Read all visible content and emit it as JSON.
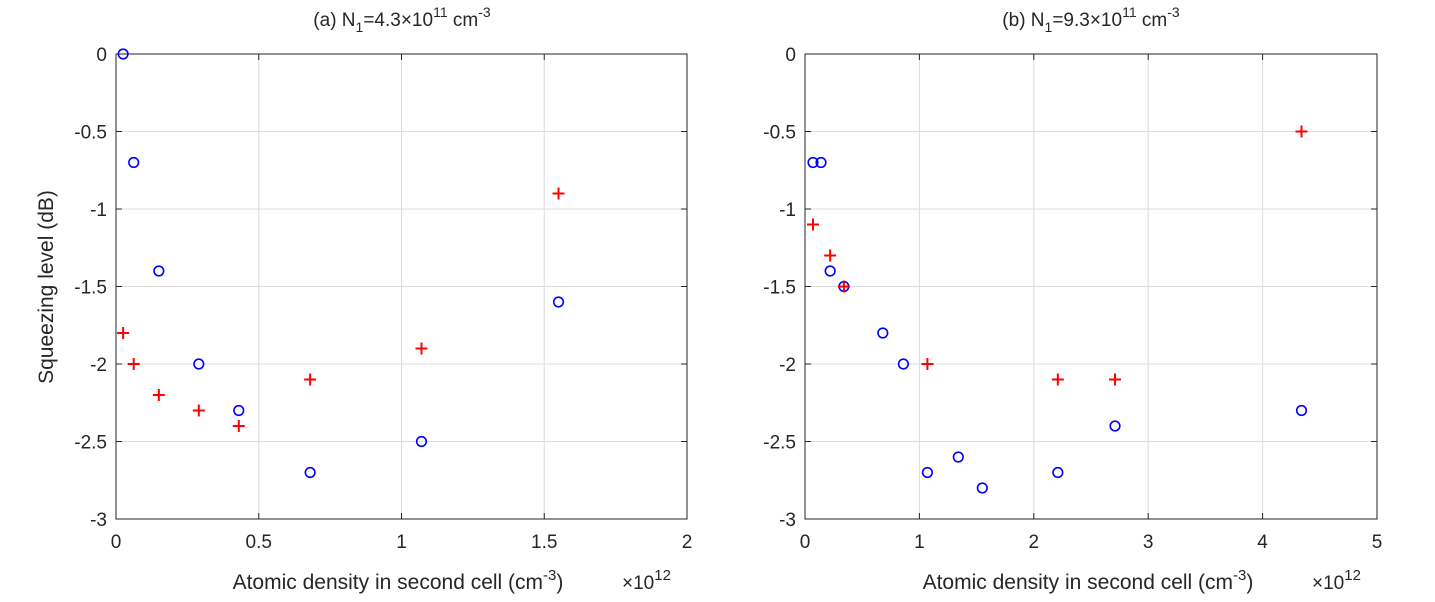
{
  "chart_data": [
    {
      "type": "scatter",
      "title": {
        "prefix": "(a) N",
        "sub": "1",
        "mid": "=4.3×10",
        "sup": "11",
        "unit": " cm",
        "unit_sup": "-3"
      },
      "xlabel": {
        "text": "Atomic density in second cell (cm",
        "sup": "-3",
        "close": ")"
      },
      "ylabel": "Squeezing level (dB)",
      "x_multiplier": {
        "base": "×10",
        "exp": "12"
      },
      "xlim": [
        0,
        2
      ],
      "ylim": [
        -3,
        0
      ],
      "xticks": [
        0,
        0.5,
        1,
        1.5,
        2
      ],
      "xtick_labels": [
        "0",
        "0.5",
        "1",
        "1.5",
        "2"
      ],
      "yticks": [
        0,
        -0.5,
        -1,
        -1.5,
        -2,
        -2.5,
        -3
      ],
      "ytick_labels": [
        "0",
        "-0.5",
        "-1",
        "-1.5",
        "-2",
        "-2.5",
        "-3"
      ],
      "grid": true,
      "series": [
        {
          "name": "circles",
          "marker": "o",
          "color": "#0000ff",
          "x": [
            0.025,
            0.062,
            0.15,
            0.29,
            0.43,
            0.68,
            1.07,
            1.55
          ],
          "y": [
            0,
            -0.7,
            -1.4,
            -2.0,
            -2.3,
            -2.7,
            -2.5,
            -1.6
          ]
        },
        {
          "name": "plus",
          "marker": "+",
          "color": "#ff0000",
          "x": [
            0.025,
            0.062,
            0.15,
            0.29,
            0.43,
            0.68,
            1.07,
            1.55
          ],
          "y": [
            -1.8,
            -2.0,
            -2.2,
            -2.3,
            -2.4,
            -2.1,
            -1.9,
            -0.9
          ]
        }
      ]
    },
    {
      "type": "scatter",
      "title": {
        "prefix": "(b) N",
        "sub": "1",
        "mid": "=9.3×10",
        "sup": "11",
        "unit": " cm",
        "unit_sup": "-3"
      },
      "xlabel": {
        "text": "Atomic density in second cell (cm",
        "sup": "-3",
        "close": ")"
      },
      "ylabel": "",
      "x_multiplier": {
        "base": "×10",
        "exp": "12"
      },
      "xlim": [
        0,
        5
      ],
      "ylim": [
        -3,
        0
      ],
      "xticks": [
        0,
        1,
        2,
        3,
        4,
        5
      ],
      "xtick_labels": [
        "0",
        "1",
        "2",
        "3",
        "4",
        "5"
      ],
      "yticks": [
        0,
        -0.5,
        -1,
        -1.5,
        -2,
        -2.5,
        -3
      ],
      "ytick_labels": [
        "0",
        "-0.5",
        "-1",
        "-1.5",
        "-2",
        "-2.5",
        "-3"
      ],
      "grid": true,
      "series": [
        {
          "name": "circles",
          "marker": "o",
          "color": "#0000ff",
          "x": [
            0.07,
            0.14,
            0.22,
            0.34,
            0.68,
            0.86,
            1.07,
            1.34,
            1.55,
            2.21,
            2.71,
            4.34
          ],
          "y": [
            -0.7,
            -0.7,
            -1.4,
            -1.5,
            -1.8,
            -2.0,
            -2.7,
            -2.6,
            -2.8,
            -2.7,
            -2.4,
            -2.3
          ]
        },
        {
          "name": "plus",
          "marker": "+",
          "color": "#ff0000",
          "x": [
            0.07,
            0.22,
            0.34,
            1.07,
            2.21,
            2.71,
            4.34
          ],
          "y": [
            -1.1,
            -1.3,
            -1.5,
            -2.0,
            -2.1,
            -2.1,
            -0.5
          ]
        }
      ]
    }
  ]
}
